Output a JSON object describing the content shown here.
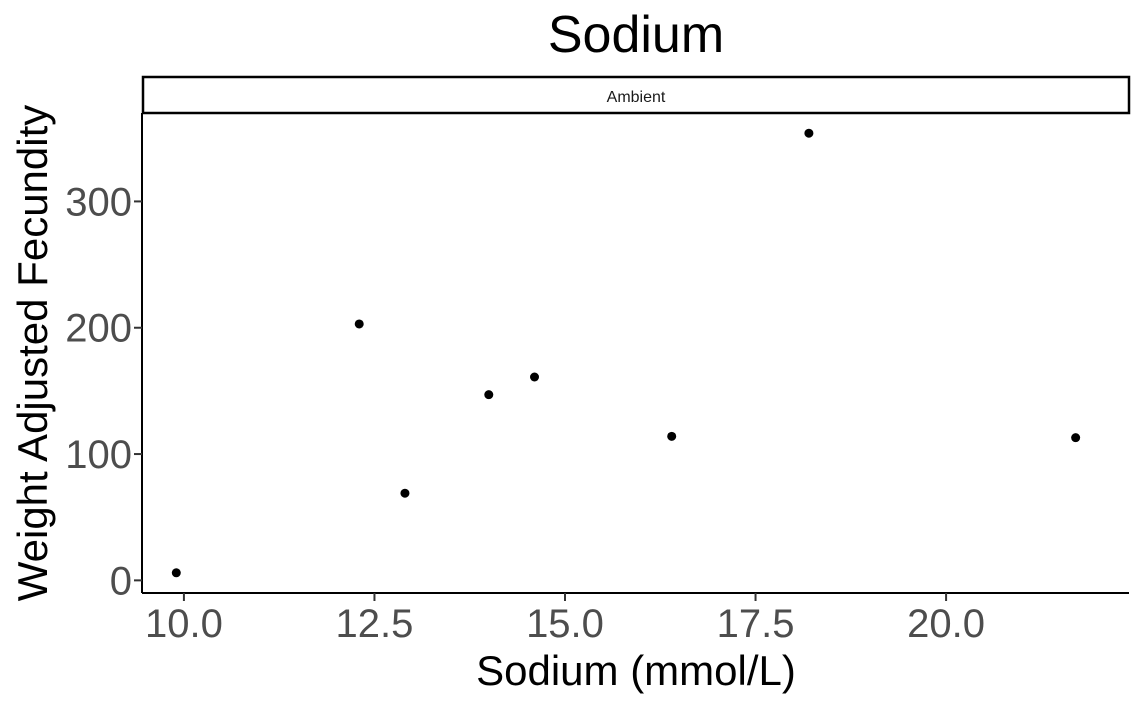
{
  "chart_data": {
    "type": "scatter",
    "title": "Sodium",
    "facet_label": "Ambient",
    "xlabel": "Sodium (mmol/L)",
    "ylabel": "Weight Adjusted Fecundity",
    "xlim": [
      9.45,
      22.4
    ],
    "ylim": [
      -10,
      370
    ],
    "x_ticks": [
      10.0,
      12.5,
      15.0,
      17.5,
      20.0
    ],
    "x_tick_labels": [
      "10.0",
      "12.5",
      "15.0",
      "17.5",
      "20.0"
    ],
    "y_ticks": [
      0,
      100,
      200,
      300
    ],
    "y_tick_labels": [
      "0",
      "100",
      "200",
      "300"
    ],
    "grid": false,
    "point_color": "#000000",
    "points": [
      {
        "x": 9.9,
        "y": 6
      },
      {
        "x": 12.3,
        "y": 203
      },
      {
        "x": 12.9,
        "y": 69
      },
      {
        "x": 14.0,
        "y": 147
      },
      {
        "x": 14.6,
        "y": 161
      },
      {
        "x": 16.4,
        "y": 114
      },
      {
        "x": 18.2,
        "y": 354
      },
      {
        "x": 21.7,
        "y": 113
      }
    ]
  }
}
